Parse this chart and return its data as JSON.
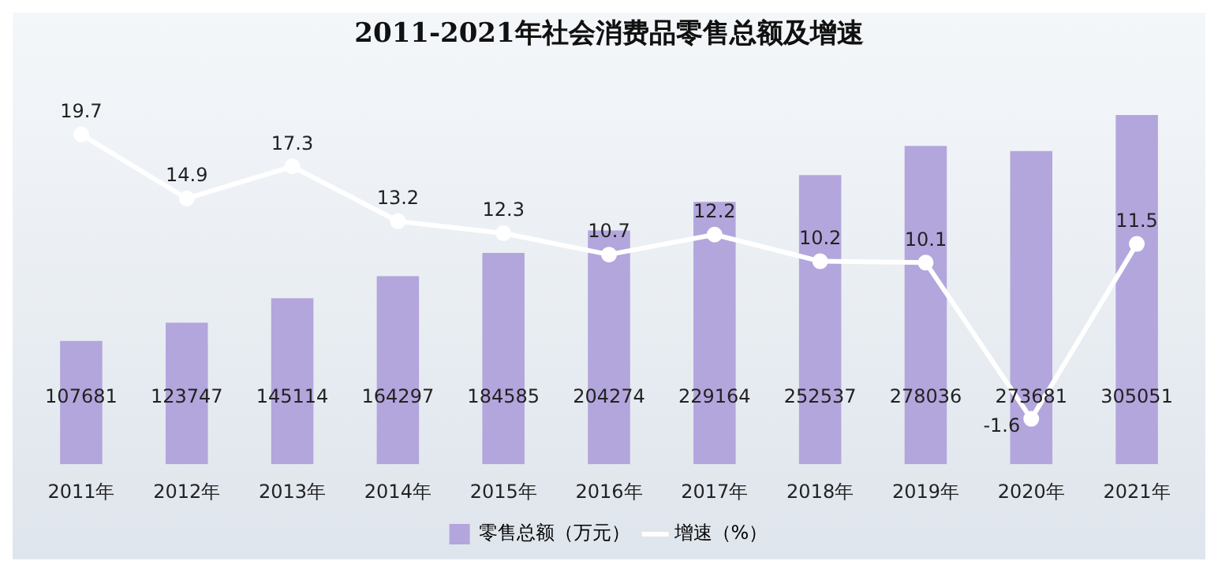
{
  "chart_data": {
    "type": "bar",
    "title": "2011-2021年社会消费品零售总额及增速",
    "categories": [
      "2011年",
      "2012年",
      "2013年",
      "2014年",
      "2015年",
      "2016年",
      "2017年",
      "2018年",
      "2019年",
      "2020年",
      "2021年"
    ],
    "series": [
      {
        "name": "零售总额（万元）",
        "color": "#b3a6dc",
        "values": [
          107681,
          123747,
          145114,
          164297,
          184585,
          204274,
          229164,
          252537,
          278036,
          273681,
          305051
        ]
      },
      {
        "name": "增速（%）",
        "type": "line",
        "axis": "y2",
        "color": "#ffffff",
        "values": [
          19.7,
          14.9,
          17.3,
          13.2,
          12.3,
          10.7,
          12.2,
          10.2,
          10.1,
          -1.6,
          11.5
        ]
      }
    ],
    "tick_labels": "x",
    "data_labels": true,
    "legend": "bottom",
    "marker": "circle",
    "line_style": "solid",
    "grid": false
  }
}
